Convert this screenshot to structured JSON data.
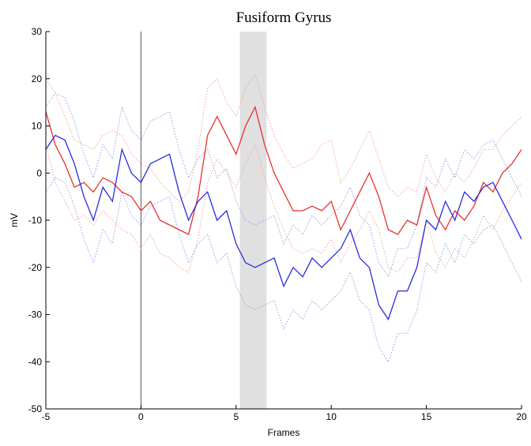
{
  "chart_data": {
    "type": "line",
    "title": "Fusiform Gyrus",
    "x_label": "Frames",
    "y_label": "mV",
    "x": [
      -5,
      -4.5,
      -4,
      -3.5,
      -3,
      -2.5,
      -2,
      -1.5,
      -1,
      -0.5,
      0,
      0.5,
      1,
      1.5,
      2,
      2.5,
      3,
      3.5,
      4,
      4.5,
      5,
      5.5,
      6,
      6.5,
      7,
      7.5,
      8,
      8.5,
      9,
      9.5,
      10,
      10.5,
      11,
      11.5,
      12,
      12.5,
      13,
      13.5,
      14,
      14.5,
      15,
      15.5,
      16,
      16.5,
      17,
      17.5,
      18,
      18.5,
      19,
      19.5,
      20
    ],
    "series": [
      {
        "color": "#f4a0a0",
        "dashed": true,
        "values": [
          20,
          17,
          12,
          7,
          6,
          5,
          8,
          9,
          8,
          4,
          2,
          1,
          -2,
          -4,
          -6,
          -4,
          5,
          18,
          20,
          15,
          12,
          18,
          21,
          14,
          8,
          4,
          1,
          2,
          3,
          6,
          7,
          -2,
          1,
          5,
          9,
          3,
          -3,
          -5,
          -3,
          -4,
          4,
          -1,
          -4,
          0,
          -2,
          1,
          5,
          5,
          8,
          10,
          12
        ]
      },
      {
        "color": "#f4a0a0",
        "dashed": true,
        "values": [
          6,
          -2,
          -6,
          -10,
          -9,
          -11,
          -8,
          -10,
          -12,
          -13,
          -16,
          -13,
          -17,
          -18,
          -20,
          -21,
          -14,
          -2,
          3,
          0,
          -3,
          2,
          6,
          -1,
          -7,
          -12,
          -16,
          -17,
          -16,
          -17,
          -14,
          -19,
          -15,
          -12,
          -8,
          -12,
          -20,
          -21,
          -18,
          -18,
          -10,
          -17,
          -20,
          -16,
          -18,
          -14,
          -9,
          -12,
          -8,
          -5,
          -2
        ]
      },
      {
        "color": "#9a9af0",
        "dashed": true,
        "values": [
          14,
          17,
          16,
          11,
          4,
          -1,
          6,
          3,
          14,
          9,
          7,
          11,
          12,
          13,
          5,
          -1,
          3,
          5,
          -1,
          1,
          -6,
          -10,
          -11,
          -10,
          -9,
          -15,
          -11,
          -13,
          -9,
          -11,
          -9,
          -7,
          -3,
          -9,
          -11,
          -19,
          -22,
          -16,
          -16,
          -11,
          -1,
          -3,
          3,
          -1,
          5,
          3,
          6,
          7,
          3,
          -1,
          -5
        ]
      },
      {
        "color": "#9a9af0",
        "dashed": true,
        "values": [
          -4,
          -1,
          -2,
          -7,
          -14,
          -19,
          -12,
          -15,
          -4,
          -9,
          -11,
          -7,
          -6,
          -5,
          -13,
          -19,
          -15,
          -13,
          -19,
          -17,
          -24,
          -28,
          -29,
          -28,
          -27,
          -33,
          -29,
          -31,
          -27,
          -29,
          -27,
          -25,
          -21,
          -27,
          -29,
          -37,
          -40,
          -34,
          -34,
          -29,
          -19,
          -21,
          -15,
          -19,
          -13,
          -15,
          -12,
          -11,
          -15,
          -19,
          -23
        ]
      },
      {
        "color": "#e83030",
        "dashed": false,
        "values": [
          13,
          6,
          2,
          -3,
          -2,
          -4,
          -1,
          -2,
          -4,
          -5,
          -8,
          -6,
          -10,
          -11,
          -12,
          -13,
          -5,
          8,
          12,
          8,
          4,
          10,
          14,
          6,
          0,
          -4,
          -8,
          -8,
          -7,
          -8,
          -6,
          -12,
          -8,
          -4,
          0,
          -5,
          -12,
          -13,
          -10,
          -11,
          -3,
          -9,
          -12,
          -8,
          -10,
          -7,
          -2,
          -4,
          0,
          2,
          5
        ]
      },
      {
        "color": "#2a2ae0",
        "dashed": false,
        "values": [
          5,
          8,
          7,
          2,
          -5,
          -10,
          -3,
          -6,
          5,
          0,
          -2,
          2,
          3,
          4,
          -4,
          -10,
          -6,
          -4,
          -10,
          -8,
          -15,
          -19,
          -20,
          -19,
          -18,
          -24,
          -20,
          -22,
          -18,
          -20,
          -18,
          -16,
          -12,
          -18,
          -20,
          -28,
          -31,
          -25,
          -25,
          -20,
          -10,
          -12,
          -6,
          -10,
          -4,
          -6,
          -3,
          -2,
          -6,
          -10,
          -14
        ]
      }
    ],
    "xlim": [
      -5,
      20
    ],
    "ylim": [
      -50,
      30
    ],
    "xticks": [
      -5,
      0,
      5,
      10,
      15,
      20
    ],
    "yticks": [
      -50,
      -40,
      -30,
      -20,
      -10,
      0,
      10,
      20,
      30
    ],
    "shaded_x": [
      5.2,
      6.6
    ],
    "vline_x": 0
  }
}
